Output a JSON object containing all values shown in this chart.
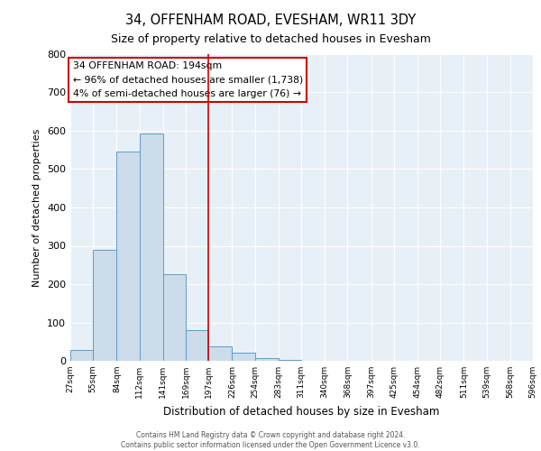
{
  "title": "34, OFFENHAM ROAD, EVESHAM, WR11 3DY",
  "subtitle": "Size of property relative to detached houses in Evesham",
  "xlabel": "Distribution of detached houses by size in Evesham",
  "ylabel": "Number of detached properties",
  "bin_edges": [
    27,
    55,
    84,
    112,
    141,
    169,
    197,
    226,
    254,
    283,
    311,
    340,
    368,
    397,
    425,
    454,
    482,
    511,
    539,
    568,
    596
  ],
  "bin_counts": [
    28,
    289,
    547,
    593,
    225,
    79,
    37,
    22,
    8,
    3,
    0,
    0,
    0,
    0,
    0,
    0,
    0,
    0,
    0,
    0
  ],
  "bar_facecolor": "#ccdcea",
  "bar_edgecolor": "#5b9ec9",
  "vline_x": 197,
  "vline_color": "#cc0000",
  "annotation_box_text": "34 OFFENHAM ROAD: 194sqm\n← 96% of detached houses are smaller (1,738)\n4% of semi-detached houses are larger (76) →",
  "annotation_box_edgecolor": "#cc0000",
  "background_color": "#e8f0f7",
  "ylim": [
    0,
    800
  ],
  "footer_line1": "Contains HM Land Registry data © Crown copyright and database right 2024.",
  "footer_line2": "Contains public sector information licensed under the Open Government Licence v3.0."
}
